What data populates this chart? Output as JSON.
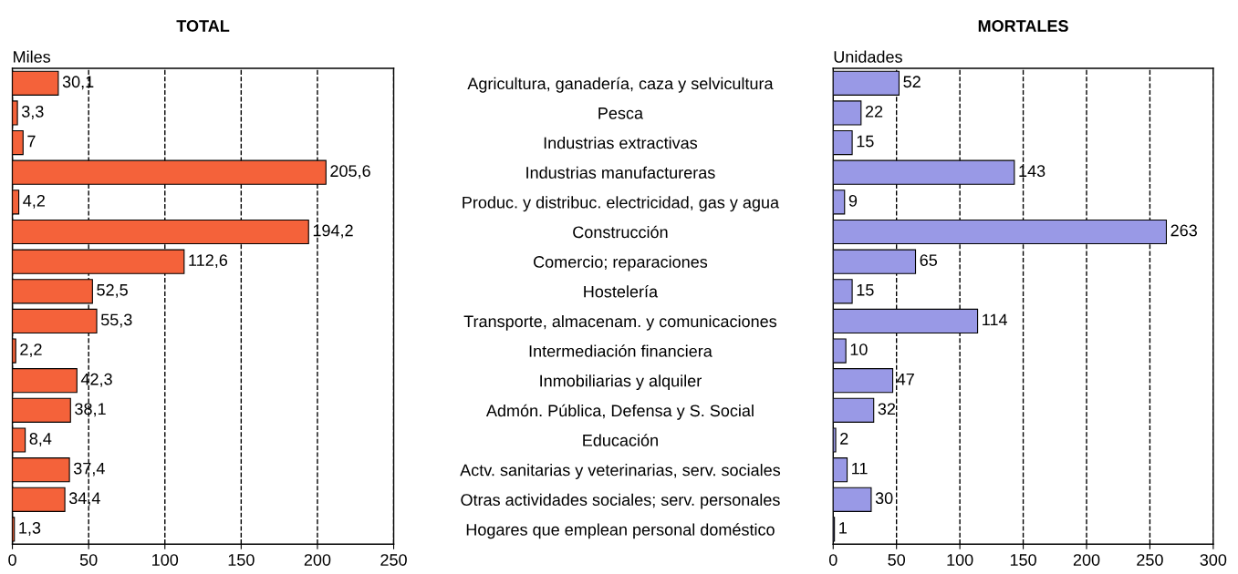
{
  "chart_data": [
    {
      "type": "bar",
      "orientation": "horizontal",
      "title": "TOTAL",
      "xlabel": "Miles",
      "categories": [
        null,
        null,
        null,
        null,
        null,
        null,
        null,
        null,
        null,
        null,
        null,
        null,
        null,
        null,
        null,
        null
      ],
      "values": [
        30.1,
        3.3,
        7,
        205.6,
        4.2,
        194.2,
        112.6,
        52.5,
        55.3,
        2.2,
        42.3,
        38.1,
        8.4,
        37.4,
        34.4,
        1.3
      ],
      "value_labels": [
        "30,1",
        "3,3",
        "7",
        "205,6",
        "4,2",
        "194,2",
        "112,6",
        "52,5",
        "55,3",
        "2,2",
        "42,3",
        "38,1",
        "8,4",
        "37,4",
        "34,4",
        "1,3"
      ],
      "color": "#f4623a",
      "xlim": [
        0,
        250
      ],
      "xticks": [
        0,
        50,
        100,
        150,
        200,
        250
      ],
      "grid": "x",
      "line_style": "dashed"
    },
    {
      "type": "bar",
      "orientation": "horizontal",
      "title": "MORTALES",
      "xlabel": "Unidades",
      "categories": [
        "Agricultura, ganadería, caza y selvicultura",
        "Pesca",
        "Industrias extractivas",
        "Industrias manufactureras",
        "Produc. y distribuc. electricidad, gas y agua",
        "Construcción",
        "Comercio; reparaciones",
        "Hostelería",
        "Transporte, almacenam. y comunicaciones",
        "Intermediación financiera",
        "Inmobiliarias y alquiler",
        "Admón. Pública, Defensa y S. Social",
        "Educación",
        "Actv. sanitarias y veterinarias, serv. sociales",
        "Otras actividades sociales; serv. personales",
        "Hogares que emplean personal doméstico"
      ],
      "values": [
        52,
        22,
        15,
        143,
        9,
        263,
        65,
        15,
        114,
        10,
        47,
        32,
        2,
        11,
        30,
        1
      ],
      "data_labels": true,
      "color": "#9999e6",
      "xlim": [
        0,
        300
      ],
      "xticks": [
        0,
        50,
        100,
        150,
        200,
        250,
        300
      ],
      "grid": "x",
      "line_style": "dashed"
    }
  ]
}
